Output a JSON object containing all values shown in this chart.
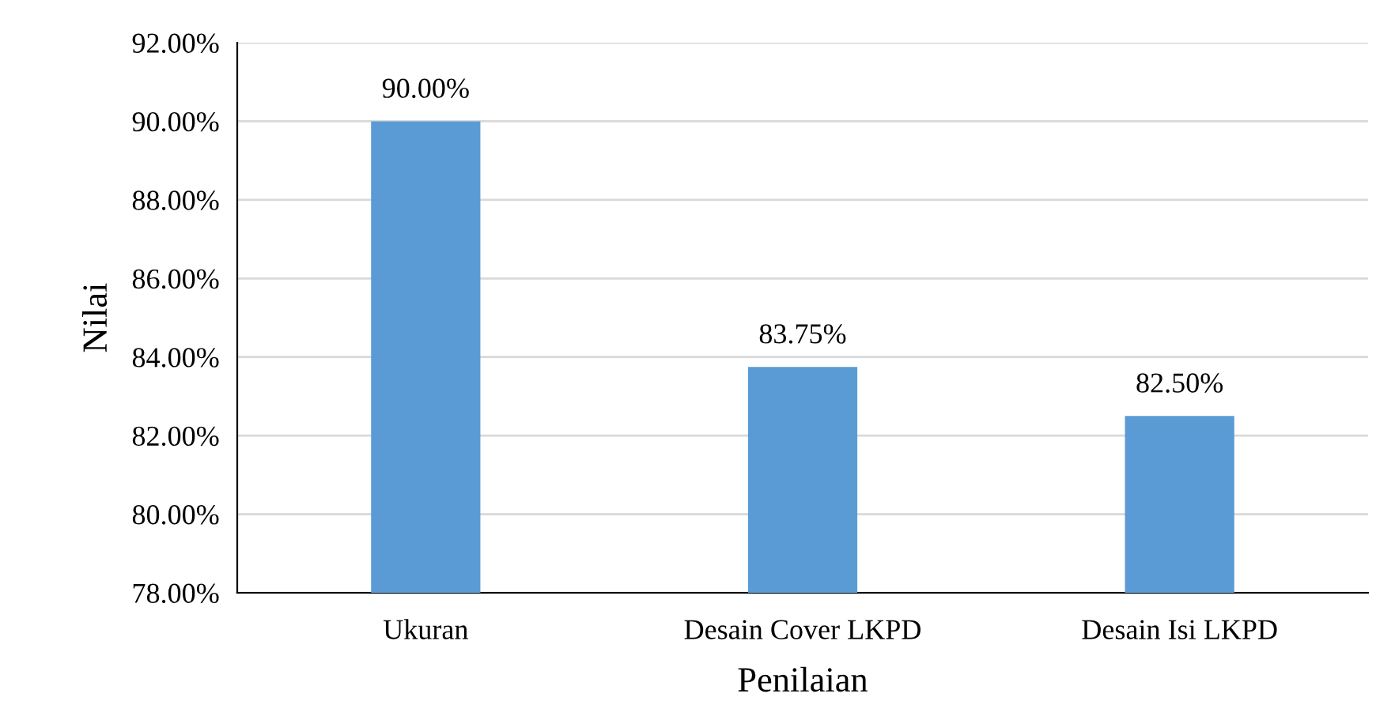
{
  "chart_data": {
    "type": "bar",
    "xlabel": "Penilaian",
    "ylabel": "Nilai",
    "categories": [
      "Ukuran",
      "Desain Cover LKPD",
      "Desain Isi LKPD"
    ],
    "values": [
      90.0,
      83.75,
      82.5
    ],
    "value_labels": [
      "90.00%",
      "83.75%",
      "82.50%"
    ],
    "color": "#5b9bd5",
    "ylim": [
      78,
      92
    ],
    "yticks": [
      {
        "value": 78,
        "label": "78.00%"
      },
      {
        "value": 80,
        "label": "80.00%"
      },
      {
        "value": 82,
        "label": "82.00%"
      },
      {
        "value": 84,
        "label": "84.00%"
      },
      {
        "value": 86,
        "label": "86.00%"
      },
      {
        "value": 88,
        "label": "88.00%"
      },
      {
        "value": 90,
        "label": "90.00%"
      },
      {
        "value": 92,
        "label": "92.00%"
      }
    ],
    "grid": "y",
    "legend": false
  }
}
